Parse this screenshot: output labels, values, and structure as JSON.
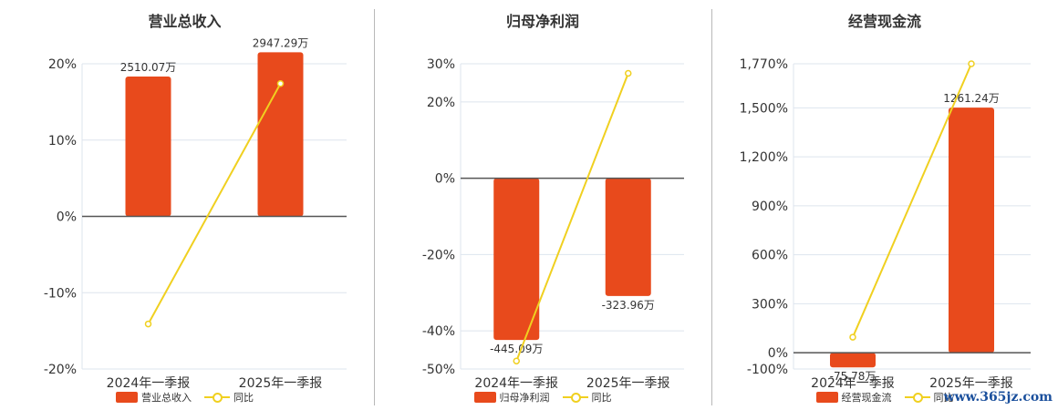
{
  "colors": {
    "bar": "#E84A1C",
    "line": "#F0D020",
    "grid": "#DDE4EE",
    "axis": "#555555"
  },
  "watermark": "www.365jz.com",
  "chart_data": [
    {
      "type": "bar",
      "title": "营业总收入",
      "categories": [
        "2024年一季报",
        "2025年一季报"
      ],
      "bar_series": {
        "name": "营业总收入",
        "values": [
          2510.07,
          2947.29
        ],
        "labels": [
          "2510.07万",
          "2947.29万"
        ]
      },
      "line_series": {
        "name": "同比",
        "values": [
          -14.1,
          17.4
        ]
      },
      "y_ticks": [
        "20%",
        "10%",
        "0%",
        "-10%",
        "-20%"
      ],
      "y_tick_values": [
        20,
        10,
        0,
        -10,
        -20
      ],
      "ylim": [
        -20,
        20
      ],
      "bar_scale_per_percent": 137.0
    },
    {
      "type": "bar",
      "title": "归母净利润",
      "categories": [
        "2024年一季报",
        "2025年一季报"
      ],
      "bar_series": {
        "name": "归母净利润",
        "values": [
          -445.09,
          -323.96
        ],
        "labels": [
          "-445.09万",
          "-323.96万"
        ]
      },
      "line_series": {
        "name": "同比",
        "values": [
          -47.9,
          27.5
        ]
      },
      "y_ticks": [
        "30%",
        "20%",
        "0%",
        "-20%",
        "-40%",
        "-50%"
      ],
      "y_tick_values": [
        30,
        20,
        0,
        -20,
        -40,
        -50
      ],
      "ylim": [
        -50,
        30
      ],
      "bar_scale_per_percent": 10.5
    },
    {
      "type": "bar",
      "title": "经营现金流",
      "categories": [
        "2024年一季报",
        "2025年一季报"
      ],
      "bar_series": {
        "name": "经营现金流",
        "values": [
          -75.78,
          1261.24
        ],
        "labels": [
          "-75.78万",
          "1261.24万"
        ]
      },
      "line_series": {
        "name": "同比",
        "values": [
          95,
          1770
        ]
      },
      "y_ticks": [
        "1,770%",
        "1,500%",
        "1,200%",
        "900%",
        "600%",
        "300%",
        "0%",
        "-100%"
      ],
      "y_tick_values": [
        1770,
        1500,
        1200,
        900,
        600,
        300,
        0,
        -100
      ],
      "ylim": [
        -100,
        1770
      ],
      "bar_scale_per_percent": 0.84
    }
  ]
}
